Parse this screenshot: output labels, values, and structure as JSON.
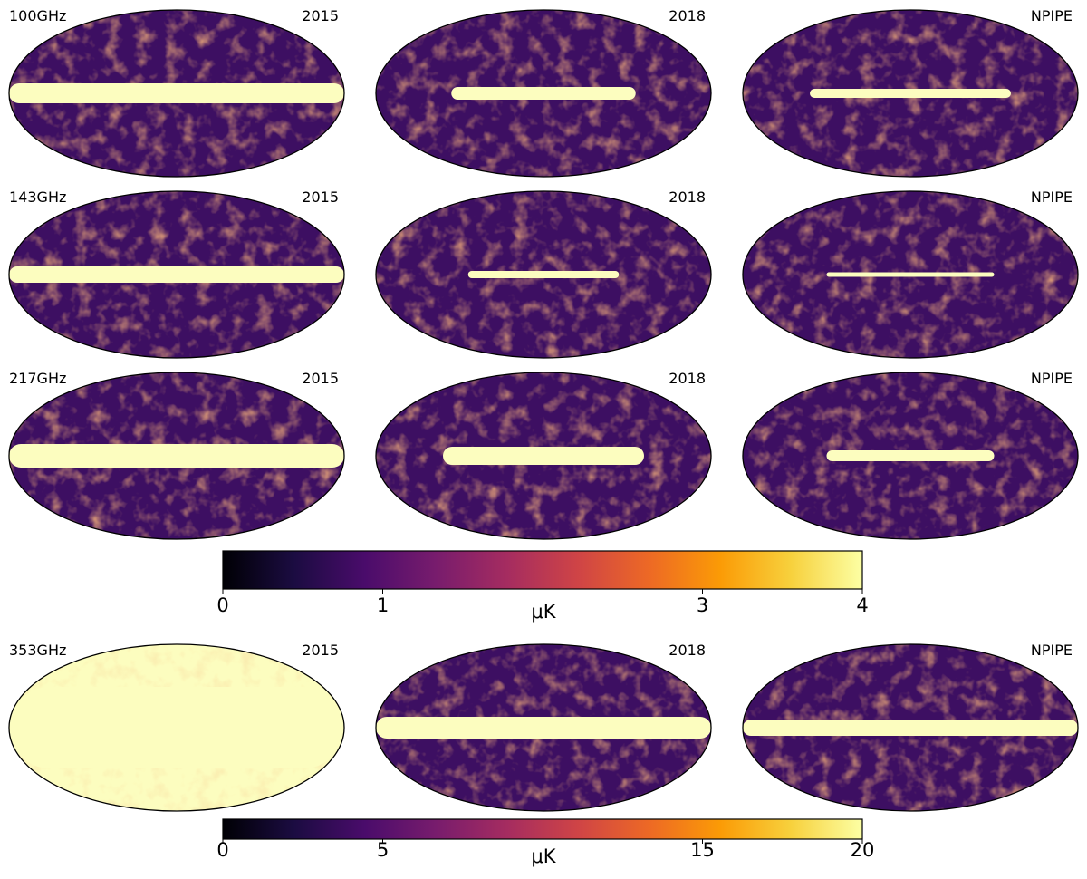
{
  "rows": [
    {
      "frequency": "100GHz",
      "maps": [
        "2015",
        "2018",
        "NPIPE"
      ]
    },
    {
      "frequency": "143GHz",
      "maps": [
        "2015",
        "2018",
        "NPIPE"
      ]
    },
    {
      "frequency": "217GHz",
      "maps": [
        "2015",
        "2018",
        "NPIPE"
      ]
    },
    {
      "frequency": "353GHz",
      "maps": [
        "2015",
        "2018",
        "NPIPE"
      ]
    }
  ],
  "colorbars": [
    {
      "label": "μK",
      "lim": [
        0,
        4
      ],
      "ticks": [
        0,
        1,
        3,
        4
      ]
    },
    {
      "label": "μK",
      "lim": [
        0,
        20
      ],
      "ticks": [
        0,
        5,
        15,
        20
      ]
    }
  ],
  "colormap": [
    "#000004",
    "#1b0c41",
    "#4a0c6b",
    "#781c6d",
    "#a52c60",
    "#cf4446",
    "#ed6925",
    "#fb9b06",
    "#f7d13d",
    "#fcffa4"
  ]
}
